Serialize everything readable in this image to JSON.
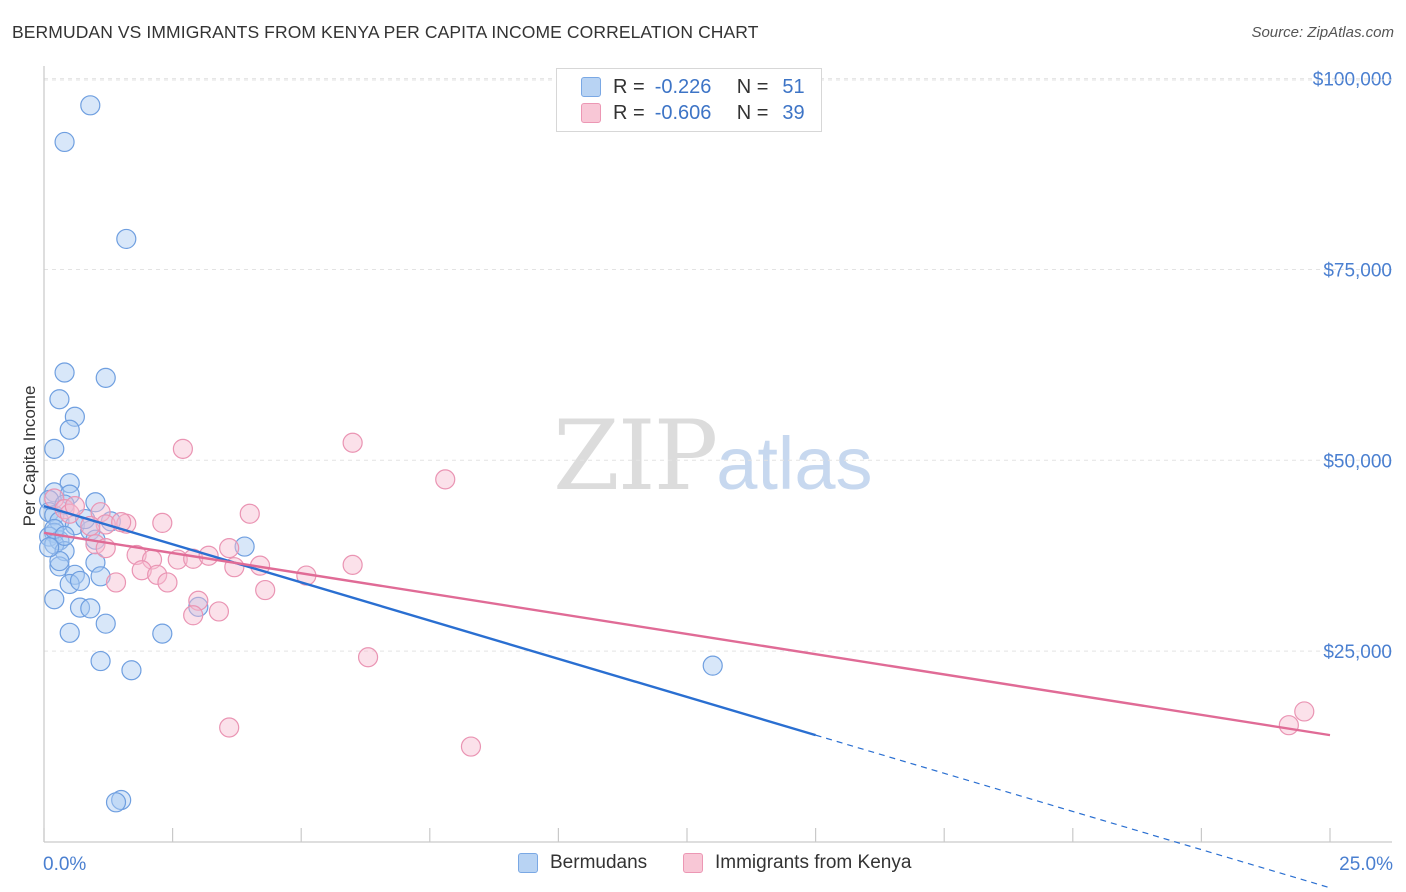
{
  "title": "BERMUDAN VS IMMIGRANTS FROM KENYA PER CAPITA INCOME CORRELATION CHART",
  "source": "Source: ZipAtlas.com",
  "watermark": {
    "zip": "ZIP",
    "atlas": "atlas"
  },
  "legend": {
    "rows": [
      {
        "r_label": "R =",
        "r_value": "-0.226",
        "n_label": "N =",
        "n_value": "51"
      },
      {
        "r_label": "R =",
        "r_value": "-0.606",
        "n_label": "N =",
        "n_value": "39"
      }
    ]
  },
  "bottom_legend": {
    "series1": "Bermudans",
    "series2": "Immigrants from Kenya"
  },
  "colors": {
    "blue_fill": "#a9c9f1",
    "blue_line": "#2a6fd1",
    "pink_fill": "#f6bdd0",
    "pink_line": "#e06b96",
    "axis_text": "#4a7fd0"
  },
  "chart_data": {
    "type": "scatter",
    "title": "BERMUDAN VS IMMIGRANTS FROM KENYA PER CAPITA INCOME CORRELATION CHART",
    "xlabel": "",
    "ylabel": "Per Capita Income",
    "xlim": [
      0,
      25
    ],
    "ylim": [
      0,
      102000
    ],
    "x_tick_labels": [
      "0.0%",
      "25.0%"
    ],
    "y_ticks": [
      25000,
      50000,
      75000,
      100000
    ],
    "y_tick_labels": [
      "$25,000",
      "$50,000",
      "$75,000",
      "$100,000"
    ],
    "series": [
      {
        "name": "Bermudans",
        "r": -0.226,
        "n": 51,
        "trend": {
          "x0": 0,
          "y0": 44000,
          "x1": 15.0,
          "y1": 14000,
          "dash_to_x": 25.0,
          "dash_y": -6000
        },
        "points": [
          [
            0.9,
            96500
          ],
          [
            0.4,
            91700
          ],
          [
            1.6,
            79000
          ],
          [
            0.4,
            61500
          ],
          [
            1.2,
            60800
          ],
          [
            0.3,
            58000
          ],
          [
            0.6,
            55700
          ],
          [
            0.5,
            54000
          ],
          [
            0.2,
            51500
          ],
          [
            0.5,
            47000
          ],
          [
            0.2,
            45800
          ],
          [
            0.5,
            45500
          ],
          [
            0.1,
            44800
          ],
          [
            1.0,
            44500
          ],
          [
            0.1,
            43200
          ],
          [
            0.2,
            42800
          ],
          [
            0.3,
            42000
          ],
          [
            1.3,
            42000
          ],
          [
            0.6,
            41500
          ],
          [
            0.9,
            40800
          ],
          [
            0.2,
            40500
          ],
          [
            0.1,
            40000
          ],
          [
            0.3,
            39500
          ],
          [
            1.0,
            39600
          ],
          [
            0.2,
            39000
          ],
          [
            3.9,
            38700
          ],
          [
            0.4,
            38100
          ],
          [
            1.0,
            36600
          ],
          [
            0.3,
            36100
          ],
          [
            0.6,
            35000
          ],
          [
            1.1,
            34800
          ],
          [
            0.5,
            33800
          ],
          [
            0.2,
            31800
          ],
          [
            0.7,
            30700
          ],
          [
            0.9,
            30600
          ],
          [
            3.0,
            30800
          ],
          [
            1.2,
            28600
          ],
          [
            0.5,
            27400
          ],
          [
            2.3,
            27300
          ],
          [
            1.1,
            23700
          ],
          [
            13.0,
            23100
          ],
          [
            1.7,
            22500
          ],
          [
            1.5,
            5500
          ],
          [
            1.4,
            5200
          ],
          [
            0.4,
            44200
          ],
          [
            0.8,
            42300
          ],
          [
            0.3,
            36800
          ],
          [
            0.2,
            41000
          ],
          [
            0.1,
            38600
          ],
          [
            0.7,
            34200
          ],
          [
            0.4,
            40100
          ]
        ]
      },
      {
        "name": "Immigrants from Kenya",
        "r": -0.606,
        "n": 39,
        "trend": {
          "x0": 0,
          "y0": 40500,
          "x1": 25.0,
          "y1": 14000
        },
        "points": [
          [
            6.0,
            52300
          ],
          [
            2.7,
            51500
          ],
          [
            7.8,
            47500
          ],
          [
            0.2,
            45000
          ],
          [
            0.4,
            43600
          ],
          [
            0.5,
            43000
          ],
          [
            1.1,
            43200
          ],
          [
            4.0,
            43000
          ],
          [
            2.3,
            41800
          ],
          [
            1.6,
            41700
          ],
          [
            1.2,
            41600
          ],
          [
            0.9,
            41400
          ],
          [
            1.0,
            39000
          ],
          [
            1.2,
            38500
          ],
          [
            3.6,
            38500
          ],
          [
            1.8,
            37600
          ],
          [
            2.1,
            37000
          ],
          [
            2.6,
            37000
          ],
          [
            2.9,
            37100
          ],
          [
            4.2,
            36200
          ],
          [
            6.0,
            36300
          ],
          [
            3.7,
            36000
          ],
          [
            1.9,
            35600
          ],
          [
            2.2,
            35000
          ],
          [
            5.1,
            34900
          ],
          [
            2.4,
            34000
          ],
          [
            1.4,
            34000
          ],
          [
            4.3,
            33000
          ],
          [
            3.0,
            31600
          ],
          [
            3.4,
            30200
          ],
          [
            2.9,
            29700
          ],
          [
            6.3,
            24200
          ],
          [
            3.6,
            15000
          ],
          [
            8.3,
            12500
          ],
          [
            24.5,
            17100
          ],
          [
            24.2,
            15300
          ],
          [
            0.6,
            44000
          ],
          [
            1.5,
            41900
          ],
          [
            3.2,
            37500
          ]
        ]
      }
    ]
  }
}
